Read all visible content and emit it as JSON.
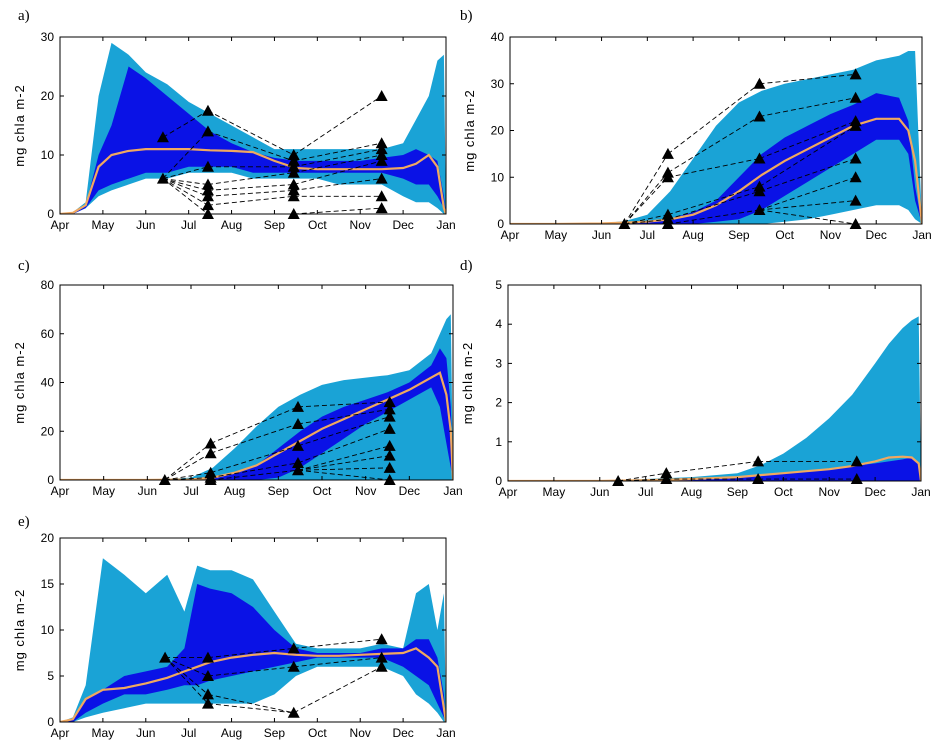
{
  "colors": {
    "outer_band": "#1aa3d6",
    "inner_band": "#0a12e6",
    "median": "#f0a860",
    "markers": "#000000"
  },
  "chart_data": [
    {
      "panel": "a)",
      "type": "area",
      "ylabel": "mg chla m-2",
      "ylim": [
        0,
        30
      ],
      "yticks": [
        0,
        10,
        20,
        30
      ],
      "xticks": [
        "Apr",
        "May",
        "Jun",
        "Jul",
        "Aug",
        "Sep",
        "Oct",
        "Nov",
        "Dec",
        "Jan"
      ],
      "x": [
        0,
        0.3,
        0.6,
        0.9,
        1.2,
        1.6,
        2.0,
        2.5,
        3.0,
        3.5,
        4.0,
        4.5,
        5.0,
        5.5,
        6.0,
        6.5,
        7.0,
        7.5,
        8.0,
        8.3,
        8.6,
        8.8,
        8.95,
        9.0
      ],
      "outer_low": [
        0,
        0,
        1,
        3,
        4,
        5,
        6,
        6,
        7,
        7,
        7,
        6,
        6,
        6,
        6,
        5,
        5,
        5,
        3,
        2,
        2,
        1,
        0,
        0
      ],
      "outer_high": [
        0,
        0.3,
        2,
        20,
        29,
        27,
        24,
        22,
        19,
        17,
        15,
        13,
        11,
        11,
        11,
        11,
        11,
        11,
        12,
        16,
        20,
        26,
        27,
        0
      ],
      "inner_low": [
        0,
        0,
        1,
        4,
        5,
        6,
        7,
        7,
        8,
        8,
        8,
        7,
        7,
        7,
        7,
        7,
        7,
        7,
        6,
        5,
        5,
        3,
        1,
        0
      ],
      "inner_high": [
        0,
        0.2,
        1.5,
        10,
        15,
        25,
        23,
        20,
        17,
        14,
        12,
        10.5,
        9.5,
        9,
        9,
        9,
        9,
        9.5,
        10,
        11,
        10,
        9,
        3,
        0
      ],
      "median": [
        0,
        0.2,
        1.5,
        8,
        10,
        10.7,
        11,
        11,
        11,
        10.8,
        10.7,
        10.5,
        9,
        7.8,
        7.6,
        7.6,
        7.6,
        7.6,
        7.8,
        8.5,
        10,
        8,
        1,
        0
      ],
      "observations": [
        {
          "x": 2.4,
          "values": [
            13,
            6
          ]
        },
        {
          "x": 3.45,
          "values": [
            17.5,
            14,
            8,
            5,
            4,
            3,
            1.5,
            0
          ]
        },
        {
          "x": 5.45,
          "values": [
            10,
            9,
            8,
            7,
            5,
            4,
            3,
            0
          ]
        },
        {
          "x": 7.5,
          "values": [
            20,
            12,
            11,
            10,
            9,
            6,
            3,
            1
          ]
        }
      ]
    },
    {
      "panel": "b)",
      "type": "area",
      "ylabel": "mg chla m-2",
      "ylim": [
        0,
        40
      ],
      "yticks": [
        0,
        10,
        20,
        30,
        40
      ],
      "xticks": [
        "Apr",
        "May",
        "Jun",
        "Jul",
        "Aug",
        "Sep",
        "Oct",
        "Nov",
        "Dec",
        "Jan"
      ],
      "x": [
        0,
        1,
        2,
        2.5,
        3,
        3.5,
        4,
        4.5,
        5,
        5.5,
        6,
        6.5,
        7,
        7.5,
        8,
        8.5,
        8.7,
        8.85,
        9.0
      ],
      "outer_low": [
        0,
        0,
        0,
        0,
        0,
        0,
        0,
        0,
        0,
        0,
        0.5,
        1,
        2,
        3,
        4,
        4,
        3,
        1,
        0
      ],
      "outer_high": [
        0,
        0,
        0.2,
        0.6,
        2,
        7,
        14,
        21,
        26,
        28.5,
        30,
        31,
        32,
        33,
        35,
        36,
        37,
        37,
        0
      ],
      "inner_low": [
        0,
        0,
        0,
        0,
        0,
        0,
        0,
        0.5,
        1,
        3,
        6,
        9,
        12,
        15,
        18,
        18,
        15,
        5,
        0
      ],
      "inner_high": [
        0,
        0,
        0.1,
        0.3,
        0.6,
        1.2,
        2.5,
        5,
        10,
        15,
        18.5,
        21,
        23.5,
        25.5,
        28,
        27,
        22,
        8,
        0
      ],
      "median": [
        0,
        0,
        0.1,
        0.3,
        0.5,
        1,
        2,
        4,
        7,
        10.5,
        13.5,
        16,
        18.5,
        21,
        22.5,
        22.5,
        20,
        13.5,
        0
      ],
      "observations": [
        {
          "x": 2.5,
          "values": [
            0
          ]
        },
        {
          "x": 3.45,
          "values": [
            15,
            11,
            10,
            2,
            1,
            0
          ]
        },
        {
          "x": 5.45,
          "values": [
            30,
            23,
            14,
            8,
            7,
            3
          ]
        },
        {
          "x": 7.55,
          "values": [
            32,
            27,
            22,
            21,
            14,
            10,
            5,
            0
          ]
        }
      ]
    },
    {
      "panel": "c)",
      "type": "area",
      "ylabel": "mg chla m-2",
      "ylim": [
        0,
        80
      ],
      "yticks": [
        0,
        20,
        40,
        60,
        80
      ],
      "xticks": [
        "Apr",
        "May",
        "Jun",
        "Jul",
        "Aug",
        "Sep",
        "Oct",
        "Nov",
        "Dec",
        "Jan"
      ],
      "x": [
        0,
        1,
        2,
        3,
        3.5,
        4,
        4.5,
        5,
        5.5,
        6,
        6.5,
        7,
        7.5,
        8,
        8.5,
        8.7,
        8.85,
        8.95,
        9.0
      ],
      "outer_low": [
        0,
        0,
        0,
        0,
        0,
        0,
        0,
        0,
        0,
        0,
        0,
        0,
        0,
        0,
        0,
        0,
        0,
        0,
        0
      ],
      "outer_high": [
        0,
        0,
        0,
        1,
        5,
        13,
        22,
        30,
        35,
        39,
        41,
        42,
        43,
        45,
        52,
        60,
        66,
        68,
        0
      ],
      "inner_low": [
        0,
        0,
        0,
        0,
        0,
        0,
        0,
        1,
        5,
        11,
        17,
        23,
        28,
        33,
        38,
        30,
        15,
        5,
        0
      ],
      "inner_high": [
        0,
        0,
        0,
        0.2,
        1,
        3,
        6,
        13,
        20,
        26,
        30,
        33,
        36,
        40,
        47,
        54,
        50,
        30,
        0
      ],
      "median": [
        0,
        0,
        0,
        0.2,
        1,
        3,
        6,
        11,
        16,
        21,
        25,
        29,
        33,
        37,
        42,
        44,
        35,
        20,
        0
      ],
      "observations": [
        {
          "x": 2.4,
          "values": [
            0
          ]
        },
        {
          "x": 3.45,
          "values": [
            15,
            11,
            3,
            1,
            0
          ]
        },
        {
          "x": 5.45,
          "values": [
            30,
            23,
            14,
            7,
            4
          ]
        },
        {
          "x": 7.55,
          "values": [
            32,
            29,
            26,
            21,
            14,
            10,
            5,
            0
          ]
        }
      ]
    },
    {
      "panel": "d)",
      "type": "area",
      "ylabel": "mg chla m-2",
      "ylim": [
        0,
        5
      ],
      "yticks": [
        0,
        1,
        2,
        3,
        4,
        5
      ],
      "xticks": [
        "Apr",
        "May",
        "Jun",
        "Jul",
        "Aug",
        "Sep",
        "Oct",
        "Nov",
        "Dec",
        "Jan"
      ],
      "x": [
        0,
        1,
        2,
        3,
        4,
        5,
        5.5,
        6,
        6.5,
        7,
        7.5,
        8,
        8.3,
        8.6,
        8.8,
        8.95,
        9.0
      ],
      "outer_low": [
        0,
        0,
        0,
        0,
        0,
        0,
        0,
        0,
        0,
        0,
        0,
        0,
        0,
        0,
        0,
        0,
        0
      ],
      "outer_high": [
        0,
        0,
        0,
        0.05,
        0.1,
        0.2,
        0.4,
        0.7,
        1.1,
        1.6,
        2.2,
        3.0,
        3.5,
        3.9,
        4.1,
        4.2,
        0
      ],
      "inner_low": [
        0,
        0,
        0,
        0,
        0,
        0,
        0,
        0,
        0,
        0,
        0,
        0,
        0,
        0,
        0,
        0,
        0
      ],
      "inner_high": [
        0,
        0,
        0,
        0.02,
        0.05,
        0.1,
        0.15,
        0.2,
        0.25,
        0.3,
        0.38,
        0.45,
        0.5,
        0.55,
        0.6,
        0.45,
        0
      ],
      "median": [
        0,
        0,
        0,
        0.02,
        0.05,
        0.1,
        0.15,
        0.2,
        0.25,
        0.3,
        0.38,
        0.5,
        0.6,
        0.62,
        0.6,
        0.45,
        0
      ],
      "observations": [
        {
          "x": 2.4,
          "values": [
            0
          ]
        },
        {
          "x": 3.45,
          "values": [
            0.2,
            0.05
          ]
        },
        {
          "x": 5.45,
          "values": [
            0.5,
            0.05
          ]
        },
        {
          "x": 7.6,
          "values": [
            0.5,
            0.05
          ]
        }
      ]
    },
    {
      "panel": "e)",
      "type": "area",
      "ylabel": "mg chla m-2",
      "ylim": [
        0,
        20
      ],
      "yticks": [
        0,
        5,
        10,
        15,
        20
      ],
      "xticks": [
        "Apr",
        "May",
        "Jun",
        "Jul",
        "Aug",
        "Sep",
        "Oct",
        "Nov",
        "Dec",
        "Jan"
      ],
      "x": [
        0,
        0.3,
        0.6,
        1.0,
        1.5,
        2.0,
        2.5,
        2.9,
        3.2,
        3.5,
        4.0,
        4.5,
        5.0,
        5.5,
        6.0,
        6.5,
        7.0,
        7.5,
        8.0,
        8.3,
        8.6,
        8.8,
        8.95,
        9.0
      ],
      "outer_low": [
        0,
        0,
        0.5,
        1,
        1.5,
        2,
        2,
        2,
        2,
        2,
        2,
        2,
        3,
        5,
        6,
        6,
        6,
        6,
        5,
        3,
        2,
        1,
        0,
        0
      ],
      "outer_high": [
        0,
        0.5,
        4,
        17.8,
        16,
        14,
        16,
        12,
        17,
        16.5,
        16.5,
        15.5,
        12,
        8.5,
        8,
        8,
        8,
        8.5,
        8,
        14,
        15,
        10,
        14,
        0
      ],
      "inner_low": [
        0,
        0,
        1,
        2,
        3,
        3,
        3.5,
        4,
        4,
        4.5,
        5,
        5.5,
        6,
        6.5,
        7,
        7,
        7,
        7,
        6,
        5,
        4,
        2,
        0.5,
        0
      ],
      "inner_high": [
        0,
        0.3,
        2.5,
        3.5,
        5,
        5.5,
        6,
        8,
        15,
        14.5,
        14,
        12.5,
        10,
        8,
        7.5,
        7.5,
        7.5,
        8,
        8,
        9,
        9,
        7,
        3,
        0
      ],
      "median": [
        0,
        0.3,
        2.5,
        3.5,
        3.7,
        4.2,
        4.8,
        5.5,
        6,
        6.5,
        7,
        7.3,
        7.5,
        7.3,
        7.2,
        7.2,
        7.3,
        7.4,
        7.5,
        8,
        7,
        6,
        1.5,
        0
      ],
      "observations": [
        {
          "x": 2.45,
          "values": [
            7
          ]
        },
        {
          "x": 3.45,
          "values": [
            7,
            5,
            3,
            2
          ]
        },
        {
          "x": 5.45,
          "values": [
            8,
            6,
            1
          ]
        },
        {
          "x": 7.5,
          "values": [
            9,
            7,
            6
          ]
        }
      ]
    }
  ]
}
